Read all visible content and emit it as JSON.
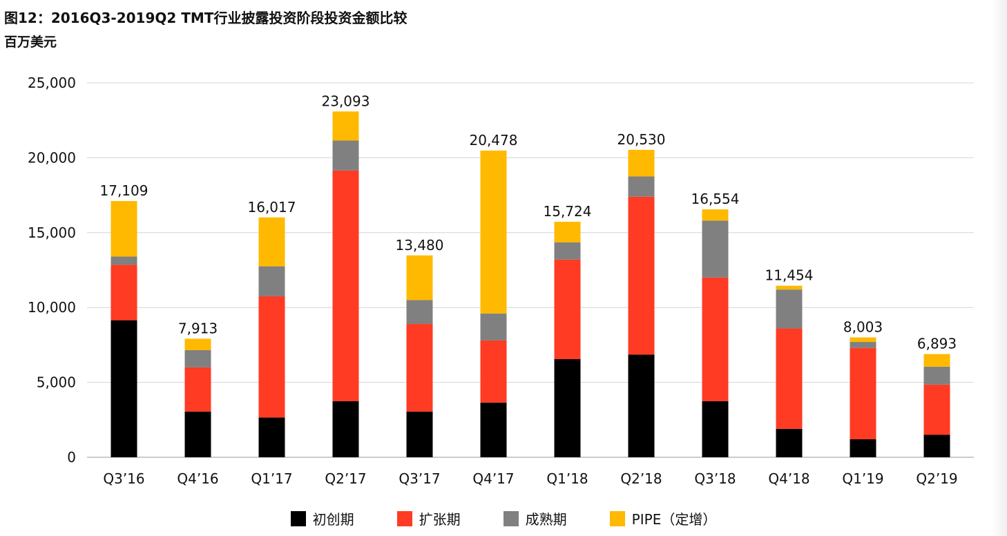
{
  "title": "图12：2016Q3-2019Q2 TMT行业披露投资阶段投资金额比较",
  "unit_label": "百万美元",
  "chart_data": {
    "type": "bar",
    "stacked": true,
    "categories": [
      "Q3'16",
      "Q4'16",
      "Q1'17",
      "Q2'17",
      "Q3'17",
      "Q4'17",
      "Q1'18",
      "Q2'18",
      "Q3'18",
      "Q4'18",
      "Q1'19",
      "Q2'19"
    ],
    "category_labels": [
      "Q3’16",
      "Q4’16",
      "Q1’17",
      "Q2’17",
      "Q3’17",
      "Q4’17",
      "Q1’18",
      "Q2’18",
      "Q3’18",
      "Q4’18",
      "Q1’19",
      "Q2’19"
    ],
    "series": [
      {
        "name": "初创期",
        "color": "#000000",
        "values": [
          9150,
          3050,
          2650,
          3750,
          3050,
          3650,
          6550,
          6850,
          3750,
          1900,
          1200,
          1500
        ]
      },
      {
        "name": "扩张期",
        "color": "#ff3b24",
        "values": [
          3700,
          2950,
          8100,
          15400,
          5850,
          4150,
          6650,
          10550,
          8250,
          6700,
          6100,
          3350
        ]
      },
      {
        "name": "成熟期",
        "color": "#808080",
        "values": [
          550,
          1150,
          2000,
          2000,
          1600,
          1800,
          1150,
          1350,
          3800,
          2600,
          400,
          1200
        ]
      },
      {
        "name": "PIPE（定增）",
        "color": "#ffb900",
        "values": [
          3709,
          763,
          3267,
          1943,
          2980,
          10878,
          1374,
          1780,
          754,
          254,
          303,
          843
        ]
      }
    ],
    "totals": [
      17109,
      7913,
      16017,
      23093,
      13480,
      20478,
      15724,
      20530,
      16554,
      11454,
      8003,
      6893
    ],
    "total_labels": [
      "17,109",
      "7,913",
      "16,017",
      "23,093",
      "13,480",
      "20,478",
      "15,724",
      "20,530",
      "16,554",
      "11,454",
      "8,003",
      "6,893"
    ],
    "y_ticks": [
      0,
      5000,
      10000,
      15000,
      20000,
      25000
    ],
    "y_tick_labels": [
      "0",
      "5,000",
      "10,000",
      "15,000",
      "20,000",
      "25,000"
    ],
    "ylim": [
      0,
      25000
    ],
    "grid": true,
    "legend_position": "bottom"
  }
}
